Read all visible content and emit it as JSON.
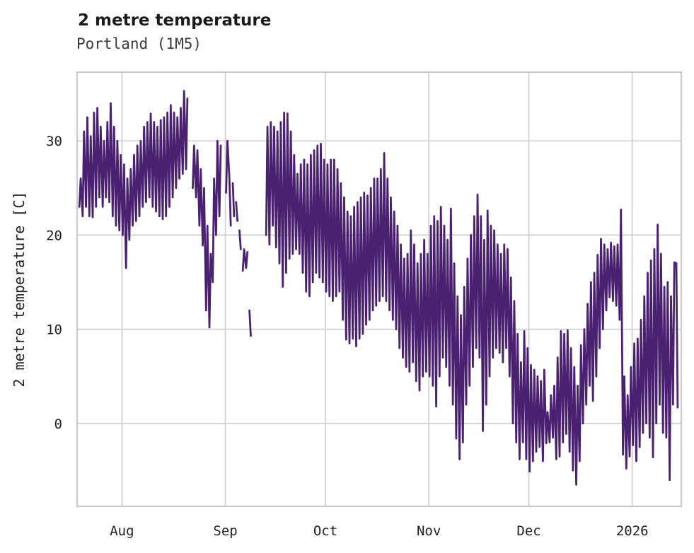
{
  "chart_data": {
    "type": "line",
    "title": "2 metre temperature",
    "subtitle": "Portland (1M5)",
    "ylabel": "2 metre temperature [C]",
    "unit": "C",
    "grid": true,
    "legend": "none",
    "line_color": "#4a2170",
    "grid_color": "#d2d2d2",
    "spine_color": "#c9c9c9",
    "text_color": "#222222",
    "y_ticks": [
      0,
      10,
      20,
      30
    ],
    "ylim": [
      -8.8,
      37.3
    ],
    "x_ticks": [
      {
        "label": "Aug",
        "day": 13
      },
      {
        "label": "Sep",
        "day": 44
      },
      {
        "label": "Oct",
        "day": 74
      },
      {
        "label": "Nov",
        "day": 105
      },
      {
        "label": "Dec",
        "day": 135
      },
      {
        "label": "2026",
        "day": 166
      }
    ],
    "xlim_days": [
      -0.45,
      180.7
    ],
    "x_day0": "Jul 19",
    "sampling": "two samples per day (approx morning low, afternoon high), degrees C, read from plot",
    "segments": [
      {
        "label": "Jul 19 - Aug 20",
        "start_day": 0,
        "days": [
          [
            23,
            26
          ],
          [
            22,
            31
          ],
          [
            23,
            32.5
          ],
          [
            22,
            30.5
          ],
          [
            21.9,
            33
          ],
          [
            23,
            33.5
          ],
          [
            24,
            31.5
          ],
          [
            23,
            30
          ],
          [
            24,
            32
          ],
          [
            23.5,
            34
          ],
          [
            22,
            31.5
          ],
          [
            21,
            30
          ],
          [
            20.5,
            28.5
          ],
          [
            20,
            27.5
          ],
          [
            16.5,
            26
          ],
          [
            19.5,
            27
          ],
          [
            21,
            28.5
          ],
          [
            21.5,
            29.5
          ],
          [
            22,
            30
          ],
          [
            23,
            31.5
          ],
          [
            23.5,
            32
          ],
          [
            24,
            32.9
          ],
          [
            23,
            32
          ],
          [
            22.5,
            31.5
          ],
          [
            22,
            32.2
          ],
          [
            21.7,
            32.5
          ],
          [
            22,
            33
          ],
          [
            23,
            33.8
          ],
          [
            24,
            33
          ],
          [
            25,
            32.5
          ],
          [
            26,
            33.5
          ],
          [
            26.5,
            35.3
          ],
          [
            27,
            34.5
          ]
        ]
      },
      {
        "label": "Aug 22 - Aug 30",
        "start_day": 34,
        "days": [
          [
            25,
            29.5
          ],
          [
            24,
            29
          ],
          [
            21,
            27
          ],
          [
            18.9,
            25
          ],
          [
            12,
            21
          ],
          [
            10.2,
            18
          ],
          [
            15,
            26
          ],
          [
            20,
            30
          ],
          [
            22,
            29.5
          ]
        ]
      },
      {
        "label": "Sep 1 - Sep 2",
        "start_day": 44,
        "days": [
          [
            24.5,
            30
          ],
          [
            26,
            21
          ]
        ]
      },
      {
        "label": "Sep 3",
        "start_day": 46,
        "days": [
          [
            25.5,
            22
          ]
        ]
      },
      {
        "label": "Sep 4",
        "start_day": 47,
        "days": [
          [
            23.5,
            21.5
          ]
        ]
      },
      {
        "label": "Sep 5",
        "start_day": 48,
        "days": [
          [
            20.5,
            18.5
          ]
        ]
      },
      {
        "label": "Sep 6 - Sep 7",
        "start_day": 49,
        "days": [
          [
            16.2,
            18.5
          ],
          [
            16.5,
            18.2
          ]
        ]
      },
      {
        "label": "Sep 8",
        "start_day": 51,
        "days": [
          [
            12,
            9.3
          ]
        ]
      },
      {
        "label": "Sep 13 - Jan 14",
        "start_day": 56,
        "days": [
          [
            20,
            31.5
          ],
          [
            19,
            32
          ],
          [
            21,
            31.5
          ],
          [
            18.7,
            31
          ],
          [
            17,
            32
          ],
          [
            14.5,
            33
          ],
          [
            16,
            32.9
          ],
          [
            17.5,
            31
          ],
          [
            18,
            28.5
          ],
          [
            18.5,
            26.5
          ],
          [
            18,
            27.5
          ],
          [
            16,
            28
          ],
          [
            14,
            27.5
          ],
          [
            13.5,
            28.5
          ],
          [
            15,
            29
          ],
          [
            16,
            29.5
          ],
          [
            15.5,
            29.7
          ],
          [
            15,
            28
          ],
          [
            14,
            27.5
          ],
          [
            13.5,
            28
          ],
          [
            13,
            28
          ],
          [
            13.5,
            27
          ],
          [
            14,
            25.5
          ],
          [
            11,
            24
          ],
          [
            8.9,
            22.5
          ],
          [
            8.5,
            22
          ],
          [
            9,
            23
          ],
          [
            8.2,
            23.5
          ],
          [
            9,
            24
          ],
          [
            9.5,
            24.5
          ],
          [
            10.5,
            24.2
          ],
          [
            11,
            25
          ],
          [
            12,
            26
          ],
          [
            12.5,
            26
          ],
          [
            13,
            27
          ],
          [
            13.5,
            28.7
          ],
          [
            13,
            26
          ],
          [
            12,
            24
          ],
          [
            11,
            22.5
          ],
          [
            10,
            21
          ],
          [
            8,
            19
          ],
          [
            7,
            17.5
          ],
          [
            6,
            18
          ],
          [
            5.5,
            20.5
          ],
          [
            6.5,
            19
          ],
          [
            4.5,
            17
          ],
          [
            3.5,
            18
          ],
          [
            5,
            19.5
          ],
          [
            5.5,
            18
          ],
          [
            5,
            21
          ],
          [
            4,
            22
          ],
          [
            1.8,
            21.5
          ],
          [
            5,
            23
          ],
          [
            7,
            21
          ],
          [
            6,
            19.5
          ],
          [
            4,
            22.8
          ],
          [
            2,
            17
          ],
          [
            -1.6,
            13.5
          ],
          [
            -3.8,
            11.5
          ],
          [
            -2,
            14.5
          ],
          [
            2,
            17.5
          ],
          [
            4,
            20
          ],
          [
            6,
            22
          ],
          [
            8,
            24.3
          ],
          [
            7,
            22
          ],
          [
            -0.8,
            19.5
          ],
          [
            2,
            22.6
          ],
          [
            5,
            21
          ],
          [
            7,
            20.5
          ],
          [
            8,
            19
          ],
          [
            7.5,
            18
          ],
          [
            6.5,
            19
          ],
          [
            8,
            18.5
          ],
          [
            5,
            15.5
          ],
          [
            0,
            13
          ],
          [
            -2,
            9.5
          ],
          [
            -3.8,
            6.5
          ],
          [
            -2,
            9.8
          ],
          [
            -3.8,
            8
          ],
          [
            -5.1,
            6.2
          ],
          [
            -4,
            5.7
          ],
          [
            -3,
            5
          ],
          [
            -2.5,
            4.5
          ],
          [
            -4,
            5.7
          ],
          [
            -2.1,
            1.2
          ],
          [
            -2,
            3
          ],
          [
            -1.5,
            4
          ],
          [
            -3.8,
            7
          ],
          [
            -3.5,
            9.8
          ],
          [
            -2,
            9.5
          ],
          [
            -1.1,
            9.9
          ],
          [
            -3,
            8
          ],
          [
            -5,
            6
          ],
          [
            -6.5,
            4
          ],
          [
            -4,
            8.3
          ],
          [
            0,
            10
          ],
          [
            2,
            12.7
          ],
          [
            4,
            15
          ],
          [
            2.4,
            16
          ],
          [
            5,
            17.9
          ],
          [
            8,
            19.6
          ],
          [
            10,
            19
          ],
          [
            12,
            18.5
          ],
          [
            13.4,
            19.2
          ],
          [
            13,
            18.8
          ],
          [
            12.5,
            19
          ],
          [
            11,
            22.7
          ],
          [
            -3.3,
            5
          ],
          [
            -4.8,
            3
          ],
          [
            -3.5,
            6
          ],
          [
            -2.3,
            8.5
          ],
          [
            -4,
            9
          ],
          [
            -2.5,
            11
          ],
          [
            -1,
            13.5
          ],
          [
            0,
            16
          ],
          [
            -1.5,
            17.3
          ],
          [
            -3.6,
            18.5
          ],
          [
            0,
            21.1
          ],
          [
            2,
            18
          ],
          [
            -1,
            14.5
          ],
          [
            -1.5,
            15
          ],
          [
            -6,
            13.5
          ],
          [
            2,
            17.1
          ],
          [
            17,
            1.7
          ]
        ]
      }
    ]
  }
}
